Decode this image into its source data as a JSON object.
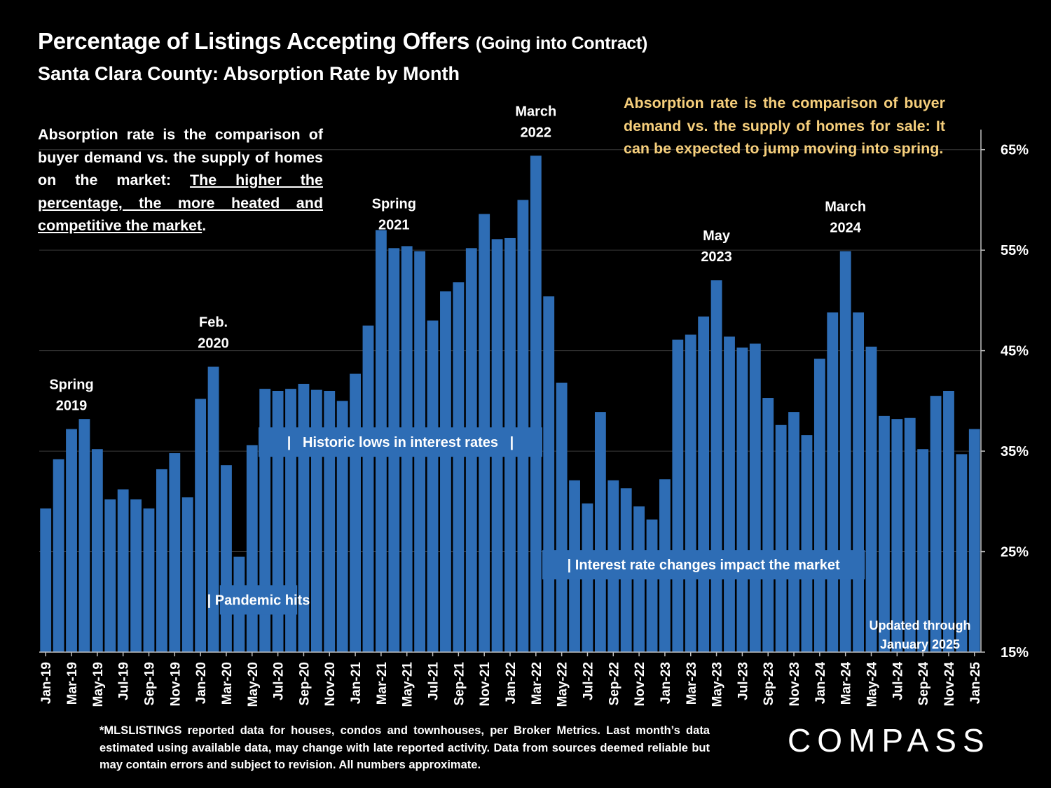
{
  "title": "Percentage of Listings Accepting Offers",
  "title_suffix": "(Going into Contract)",
  "subtitle": "Santa Clara County:  Absorption Rate by Month",
  "note_left": {
    "plain": "Absorption rate is the comparison of buyer demand vs. the supply of homes on the market: ",
    "underlined": "The higher the percentage, the more heated and competitive the market",
    "end": "."
  },
  "note_right": "Absorption rate is the comparison of buyer demand vs. the supply of homes for sale: It can be expected to jump moving into spring.",
  "footnote": "*MLSLISTINGS reported data for houses, condos and townhouses, per Broker Metrics. Last month’s data estimated using available data, may change with late reported activity. Data from sources deemed reliable but may contain errors and subject to revision. All numbers approximate.",
  "logo": "COMPASS",
  "updated_note": [
    "Updated through",
    "January 2025"
  ],
  "colors": {
    "bar": "#2e6db5",
    "background": "#000000",
    "accent_text": "#f6cf7c",
    "band": "#2e6db5"
  },
  "chart_data": {
    "type": "bar",
    "categories": [
      "Jan-19",
      "Feb-19",
      "Mar-19",
      "Apr-19",
      "May-19",
      "Jun-19",
      "Jul-19",
      "Aug-19",
      "Sep-19",
      "Oct-19",
      "Nov-19",
      "Dec-19",
      "Jan-20",
      "Feb-20",
      "Mar-20",
      "Apr-20",
      "May-20",
      "Jun-20",
      "Jul-20",
      "Aug-20",
      "Sep-20",
      "Oct-20",
      "Nov-20",
      "Dec-20",
      "Jan-21",
      "Feb-21",
      "Mar-21",
      "Apr-21",
      "May-21",
      "Jun-21",
      "Jul-21",
      "Aug-21",
      "Sep-21",
      "Oct-21",
      "Nov-21",
      "Dec-21",
      "Jan-22",
      "Feb-22",
      "Mar-22",
      "Apr-22",
      "May-22",
      "Jun-22",
      "Jul-22",
      "Aug-22",
      "Sep-22",
      "Oct-22",
      "Nov-22",
      "Dec-22",
      "Jan-23",
      "Feb-23",
      "Mar-23",
      "Apr-23",
      "May-23",
      "Jun-23",
      "Jul-23",
      "Aug-23",
      "Sep-23",
      "Oct-23",
      "Nov-23",
      "Dec-23",
      "Jan-24",
      "Feb-24",
      "Mar-24",
      "Apr-24",
      "May-24",
      "Jun-24",
      "Jul-24",
      "Aug-24",
      "Sep-24",
      "Oct-24",
      "Nov-24",
      "Dec-24",
      "Jan-25"
    ],
    "x_tick_labels": [
      "Jan-19",
      "Mar-19",
      "May-19",
      "Jul-19",
      "Sep-19",
      "Nov-19",
      "Jan-20",
      "Mar-20",
      "May-20",
      "Jul-20",
      "Sep-20",
      "Nov-20",
      "Jan-21",
      "Mar-21",
      "May-21",
      "Jul-21",
      "Sep-21",
      "Nov-21",
      "Jan-22",
      "Mar-22",
      "May-22",
      "Jul-22",
      "Sep-22",
      "Nov-22",
      "Jan-23",
      "Mar-23",
      "May-23",
      "Jul-23",
      "Sep-23",
      "Nov-23",
      "Jan-24",
      "Mar-24",
      "May-24",
      "Jul-24",
      "Sep-24",
      "Nov-24",
      "Jan-25"
    ],
    "values": [
      29.3,
      34.2,
      37.2,
      38.2,
      35.2,
      30.2,
      31.2,
      30.2,
      29.3,
      33.2,
      34.8,
      30.4,
      40.2,
      43.4,
      33.6,
      24.5,
      35.6,
      41.2,
      41.0,
      41.2,
      41.7,
      41.1,
      41.0,
      40.0,
      42.7,
      47.5,
      57.0,
      55.2,
      55.4,
      54.9,
      48.0,
      50.9,
      51.8,
      55.2,
      58.6,
      56.1,
      56.2,
      60.0,
      64.4,
      50.4,
      41.8,
      32.1,
      29.8,
      38.9,
      32.1,
      31.3,
      29.5,
      28.2,
      32.2,
      46.1,
      46.6,
      48.4,
      52.0,
      46.4,
      45.3,
      45.7,
      40.3,
      37.6,
      38.9,
      36.6,
      44.2,
      48.8,
      54.9,
      48.8,
      45.4,
      38.5,
      38.2,
      38.3,
      35.2,
      40.5,
      41.0,
      34.7,
      37.2
    ],
    "ylabel": "",
    "ylim": [
      15,
      67
    ],
    "y_ticks": [
      15,
      25,
      35,
      45,
      55,
      65
    ],
    "y_tick_labels": [
      "15%",
      "25%",
      "35%",
      "45%",
      "55%",
      "65%"
    ],
    "y_axis_side": "right",
    "grid": true,
    "annotations": [
      {
        "lines": [
          "Spring",
          "2019"
        ],
        "month": "Mar-19"
      },
      {
        "lines": [
          "Feb.",
          "2020"
        ],
        "month": "Feb-20"
      },
      {
        "lines": [
          "Spring",
          "2021"
        ],
        "month": "Apr-21"
      },
      {
        "lines": [
          "March",
          "2022"
        ],
        "month": "Mar-22"
      },
      {
        "lines": [
          "May",
          "2023"
        ],
        "month": "May-23"
      },
      {
        "lines": [
          "March",
          "2024"
        ],
        "month": "Mar-24"
      }
    ],
    "bands": [
      {
        "text": "|   Historic lows in interest rates   |",
        "from": "Jun-20",
        "to": "Mar-22",
        "level": 35.9
      },
      {
        "text": "| Pandemic hits",
        "from": "Mar-20",
        "to": "Aug-20",
        "level": 20.2
      },
      {
        "text": "| Interest rate changes impact the market",
        "from": "Apr-22",
        "to": "Apr-24",
        "level": 23.7
      }
    ]
  }
}
